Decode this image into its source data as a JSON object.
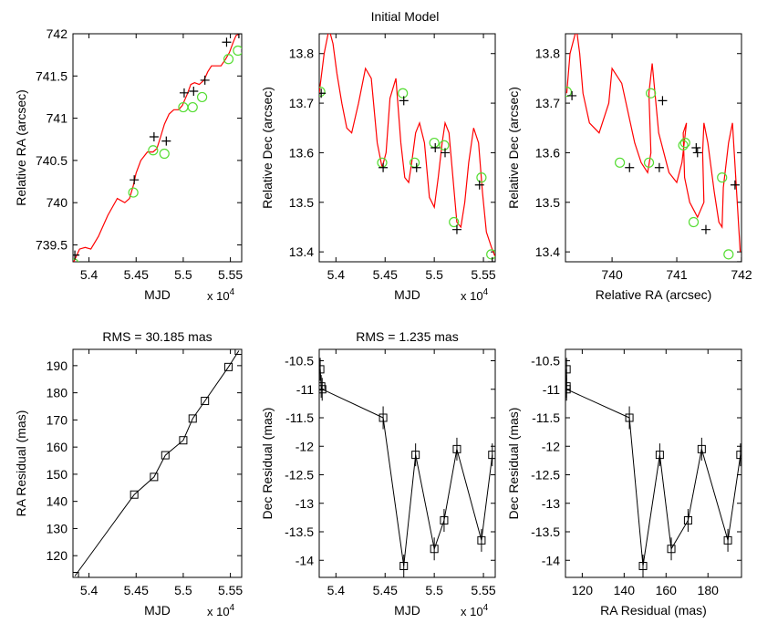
{
  "figure": {
    "suptitle": "Initial Model"
  },
  "chart_data": [
    {
      "id": "p1",
      "type": "line",
      "title": "",
      "xlabel": "MJD",
      "ylabel": "Relative RA (arcsec)",
      "xlim": [
        53830,
        55620
      ],
      "ylim": [
        739.3,
        742.0
      ],
      "xticks": [
        54000,
        54500,
        55000,
        55500
      ],
      "xtick_labels": [
        "5.4",
        "5.45",
        "5.5",
        "5.55"
      ],
      "xmultiplier": "x 10^4",
      "yticks": [
        739.5,
        740,
        740.5,
        741,
        741.5,
        742
      ],
      "ytick_labels": [
        "739.5",
        "740",
        "740.5",
        "741",
        "741.5",
        "742"
      ],
      "series": [
        {
          "name": "model",
          "kind": "curve",
          "color": "#ff0000",
          "x": [
            53830,
            53900,
            53960,
            54020,
            54100,
            54200,
            54300,
            54380,
            54430,
            54470,
            54500,
            54550,
            54620,
            54680,
            54720,
            54760,
            54800,
            54850,
            54900,
            54950,
            54990,
            55040,
            55080,
            55120,
            55170,
            55220,
            55260,
            55300,
            55350,
            55400,
            55450,
            55490,
            55530,
            55560,
            55600
          ],
          "y": [
            739.28,
            739.45,
            739.47,
            739.45,
            739.6,
            739.85,
            740.05,
            740.0,
            740.05,
            740.2,
            740.35,
            740.5,
            740.6,
            740.6,
            740.64,
            740.78,
            740.93,
            741.05,
            741.1,
            741.1,
            741.15,
            741.28,
            741.4,
            741.42,
            741.4,
            741.45,
            741.55,
            741.62,
            741.62,
            741.62,
            741.7,
            741.78,
            741.9,
            741.98,
            742.0
          ]
        },
        {
          "name": "model positions",
          "kind": "circle",
          "color": "#55dd33",
          "x": [
            53840,
            54470,
            54680,
            54800,
            55000,
            55100,
            55200,
            55480,
            55580
          ],
          "y": [
            739.28,
            740.12,
            740.62,
            740.58,
            741.13,
            741.13,
            741.25,
            741.7,
            741.8
          ]
        },
        {
          "name": "observed positions",
          "kind": "plus",
          "color": "#000000",
          "x": [
            53850,
            54480,
            54690,
            54820,
            55010,
            55110,
            55230,
            55460,
            55590
          ],
          "y": [
            739.38,
            740.27,
            740.78,
            740.73,
            741.3,
            741.32,
            741.45,
            741.9,
            742.0
          ]
        }
      ]
    },
    {
      "id": "p2",
      "type": "line",
      "title": "",
      "xlabel": "MJD",
      "ylabel": "Relative Dec (arcsec)",
      "xlim": [
        53830,
        55620
      ],
      "ylim": [
        13.38,
        13.84
      ],
      "xticks": [
        54000,
        54500,
        55000,
        55500
      ],
      "xtick_labels": [
        "5.4",
        "5.45",
        "5.5",
        "5.55"
      ],
      "xmultiplier": "x 10^4",
      "yticks": [
        13.4,
        13.5,
        13.6,
        13.7,
        13.8
      ],
      "ytick_labels": [
        "13.4",
        "13.5",
        "13.6",
        "13.7",
        "13.8"
      ],
      "series": [
        {
          "name": "model",
          "kind": "curve",
          "color": "#ff0000",
          "x": [
            53830,
            53880,
            53930,
            53970,
            54010,
            54060,
            54110,
            54160,
            54230,
            54300,
            54360,
            54420,
            54470,
            54510,
            54550,
            54610,
            54660,
            54700,
            54740,
            54770,
            54810,
            54850,
            54900,
            54950,
            55000,
            55040,
            55080,
            55110,
            55150,
            55190,
            55230,
            55270,
            55310,
            55350,
            55400,
            55450,
            55490,
            55530,
            55580,
            55620
          ],
          "y": [
            13.72,
            13.8,
            13.85,
            13.82,
            13.76,
            13.7,
            13.65,
            13.64,
            13.7,
            13.77,
            13.75,
            13.62,
            13.57,
            13.6,
            13.71,
            13.75,
            13.62,
            13.55,
            13.54,
            13.58,
            13.64,
            13.66,
            13.62,
            13.51,
            13.49,
            13.55,
            13.62,
            13.66,
            13.64,
            13.55,
            13.46,
            13.45,
            13.5,
            13.58,
            13.65,
            13.62,
            13.52,
            13.44,
            13.41,
            13.39
          ]
        },
        {
          "name": "model positions",
          "kind": "circle",
          "color": "#55dd33",
          "x": [
            53840,
            54470,
            54680,
            54800,
            55000,
            55100,
            55200,
            55480,
            55580
          ],
          "y": [
            13.723,
            13.58,
            13.72,
            13.58,
            13.62,
            13.615,
            13.46,
            13.55,
            13.395
          ]
        },
        {
          "name": "observed positions",
          "kind": "plus",
          "color": "#000000",
          "x": [
            53850,
            54480,
            54690,
            54820,
            55010,
            55110,
            55230,
            55460,
            55590
          ],
          "y": [
            13.72,
            13.57,
            13.705,
            13.57,
            13.61,
            13.6,
            13.445,
            13.535,
            13.38
          ]
        }
      ]
    },
    {
      "id": "p3",
      "type": "line",
      "title": "",
      "xlabel": "Relative RA (arcsec)",
      "ylabel": "Relative Dec (arcsec)",
      "xlim": [
        739.28,
        742.0
      ],
      "ylim": [
        13.38,
        13.84
      ],
      "xticks": [
        740,
        741,
        742
      ],
      "xtick_labels": [
        "740",
        "741",
        "742"
      ],
      "yticks": [
        13.4,
        13.5,
        13.6,
        13.7,
        13.8
      ],
      "ytick_labels": [
        "13.4",
        "13.5",
        "13.6",
        "13.7",
        "13.8"
      ],
      "series": [
        {
          "name": "model",
          "kind": "curve",
          "color": "#ff0000",
          "x": [
            739.3,
            739.35,
            739.45,
            739.5,
            739.55,
            739.65,
            739.8,
            739.95,
            740.0,
            740.15,
            740.35,
            740.45,
            740.55,
            740.6,
            740.57,
            740.62,
            740.72,
            740.88,
            741.0,
            741.08,
            741.15,
            741.1,
            741.12,
            741.2,
            741.32,
            741.42,
            741.4,
            741.42,
            741.48,
            741.58,
            741.65,
            741.7,
            741.72,
            741.8,
            741.86,
            741.98
          ],
          "y": [
            13.72,
            13.8,
            13.85,
            13.8,
            13.72,
            13.66,
            13.64,
            13.7,
            13.77,
            13.74,
            13.62,
            13.58,
            13.56,
            13.6,
            13.72,
            13.78,
            13.64,
            13.56,
            13.54,
            13.58,
            13.66,
            13.64,
            13.55,
            13.5,
            13.47,
            13.5,
            13.6,
            13.66,
            13.62,
            13.52,
            13.46,
            13.45,
            13.53,
            13.62,
            13.66,
            13.4
          ]
        },
        {
          "name": "model positions",
          "kind": "circle",
          "color": "#55dd33",
          "x": [
            739.3,
            740.12,
            740.6,
            740.57,
            741.1,
            741.13,
            741.26,
            741.7,
            741.8
          ],
          "y": [
            13.723,
            13.58,
            13.72,
            13.58,
            13.615,
            13.62,
            13.46,
            13.55,
            13.395
          ]
        },
        {
          "name": "observed positions",
          "kind": "plus",
          "color": "#000000",
          "x": [
            739.38,
            740.27,
            740.78,
            740.73,
            741.3,
            741.32,
            741.45,
            741.9,
            742.0
          ],
          "y": [
            13.715,
            13.57,
            13.705,
            13.57,
            13.61,
            13.6,
            13.445,
            13.535,
            13.38
          ]
        }
      ]
    },
    {
      "id": "p4",
      "type": "line",
      "title": "RMS = 30.185 mas",
      "xlabel": "MJD",
      "ylabel": "RA Residual (mas)",
      "xlim": [
        53830,
        55620
      ],
      "ylim": [
        112,
        196
      ],
      "xticks": [
        54000,
        54500,
        55000,
        55500
      ],
      "xtick_labels": [
        "5.4",
        "5.45",
        "5.5",
        "5.55"
      ],
      "xmultiplier": "x 10^4",
      "yticks": [
        120,
        130,
        140,
        150,
        160,
        170,
        180,
        190
      ],
      "ytick_labels": [
        "120",
        "130",
        "140",
        "150",
        "160",
        "170",
        "180",
        "190"
      ],
      "series": [
        {
          "name": "RA residual",
          "kind": "squares-line",
          "color": "#000000",
          "x": [
            53850,
            54480,
            54690,
            54810,
            55000,
            55100,
            55230,
            55480,
            55590
          ],
          "y": [
            112.5,
            142.5,
            149,
            157,
            162.5,
            170.5,
            177,
            189.5,
            195.5
          ],
          "err": [
            0,
            0,
            0,
            0,
            0,
            0,
            0,
            0,
            0
          ]
        }
      ]
    },
    {
      "id": "p5",
      "type": "line",
      "title": "RMS = 1.235 mas",
      "xlabel": "MJD",
      "ylabel": "Dec Residual (mas)",
      "xlim": [
        53830,
        55620
      ],
      "ylim": [
        -14.3,
        -10.3
      ],
      "xticks": [
        54000,
        54500,
        55000,
        55500
      ],
      "xtick_labels": [
        "5.4",
        "5.45",
        "5.5",
        "5.55"
      ],
      "xmultiplier": "x 10^4",
      "yticks": [
        -14,
        -13.5,
        -13,
        -12.5,
        -12,
        -11.5,
        -11,
        -10.5
      ],
      "ytick_labels": [
        "-14",
        "-13.5",
        "-13",
        "-12.5",
        "-12",
        "-11.5",
        "-11",
        "-10.5"
      ],
      "series": [
        {
          "name": "Dec residual",
          "kind": "squares-line",
          "color": "#000000",
          "x": [
            53840,
            53850,
            53860,
            54480,
            54690,
            54810,
            55000,
            55100,
            55230,
            55480,
            55590
          ],
          "y": [
            -10.65,
            -10.95,
            -11.0,
            -11.5,
            -14.1,
            -12.15,
            -13.8,
            -13.3,
            -12.05,
            -13.65,
            -12.15
          ],
          "err": [
            0.2,
            0.2,
            0.2,
            0.2,
            0.2,
            0.2,
            0.2,
            0.2,
            0.2,
            0.2,
            0.2
          ]
        }
      ]
    },
    {
      "id": "p6",
      "type": "line",
      "title": "",
      "xlabel": "RA Residual (mas)",
      "ylabel": "Dec Residual (mas)",
      "xlim": [
        112,
        196
      ],
      "ylim": [
        -14.3,
        -10.3
      ],
      "xticks": [
        120,
        140,
        160,
        180
      ],
      "xtick_labels": [
        "120",
        "140",
        "160",
        "180"
      ],
      "yticks": [
        -14,
        -13.5,
        -13,
        -12.5,
        -12,
        -11.5,
        -11,
        -10.5
      ],
      "ytick_labels": [
        "-14",
        "-13.5",
        "-13",
        "-12.5",
        "-12",
        "-11.5",
        "-11",
        "-10.5"
      ],
      "series": [
        {
          "name": "residuals",
          "kind": "squares-line",
          "color": "#000000",
          "x": [
            112.5,
            112.5,
            112.5,
            142.5,
            149,
            157,
            162.5,
            170.5,
            177,
            189.5,
            195.5
          ],
          "y": [
            -10.65,
            -10.95,
            -11.0,
            -11.5,
            -14.1,
            -12.15,
            -13.8,
            -13.3,
            -12.05,
            -13.65,
            -12.15
          ],
          "err": [
            0.2,
            0.2,
            0.2,
            0.2,
            0.2,
            0.2,
            0.2,
            0.2,
            0.2,
            0.2,
            0.2
          ]
        }
      ]
    }
  ]
}
